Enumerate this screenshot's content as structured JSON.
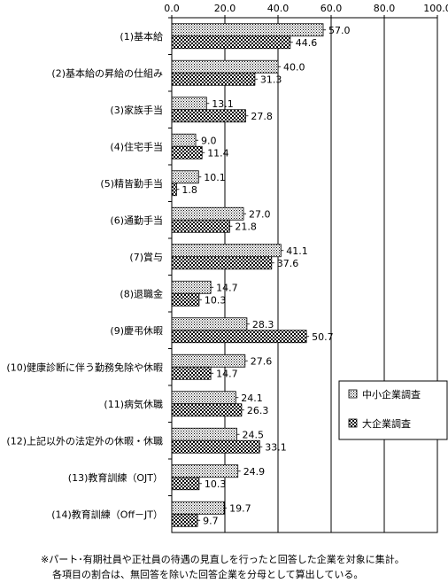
{
  "chart_data": {
    "type": "bar",
    "orientation": "horizontal",
    "categories": [
      "(1)基本給",
      "(2)基本給の昇給の仕組み",
      "(3)家族手当",
      "(4)住宅手当",
      "(5)精皆勤手当",
      "(6)通勤手当",
      "(7)賞与",
      "(8)退職金",
      "(9)慶弔休暇",
      "(10)健康診断に伴う勤務免除や休暇",
      "(11)病気休職",
      "(12)上記以外の法定外の休暇・休職",
      "(13)教育訓練（OJT）",
      "(14)教育訓練（Off－JT）"
    ],
    "series": [
      {
        "name": "中小企業調査",
        "values": [
          57.0,
          40.0,
          13.1,
          9.0,
          10.1,
          27.0,
          41.1,
          14.7,
          28.3,
          27.6,
          24.1,
          24.5,
          24.9,
          19.7
        ],
        "pattern": "dotted"
      },
      {
        "name": "大企業調査",
        "values": [
          44.6,
          31.3,
          27.8,
          11.4,
          1.8,
          21.8,
          37.6,
          10.3,
          50.7,
          14.7,
          26.3,
          33.1,
          10.3,
          9.7
        ],
        "pattern": "checkered"
      }
    ],
    "xlim": [
      0,
      100
    ],
    "xticks": [
      "0.0",
      "20.0",
      "40.0",
      "60.0",
      "80.0",
      "100.0"
    ],
    "legend_position": "right",
    "gridlines": true
  },
  "notes": [
    "※パート･有期社員や正社員の待遇の見直しを行ったと回答した企業を対象に集計。",
    "各項目の割合は、無回答を除いた回答企業を分母として算出している。"
  ]
}
